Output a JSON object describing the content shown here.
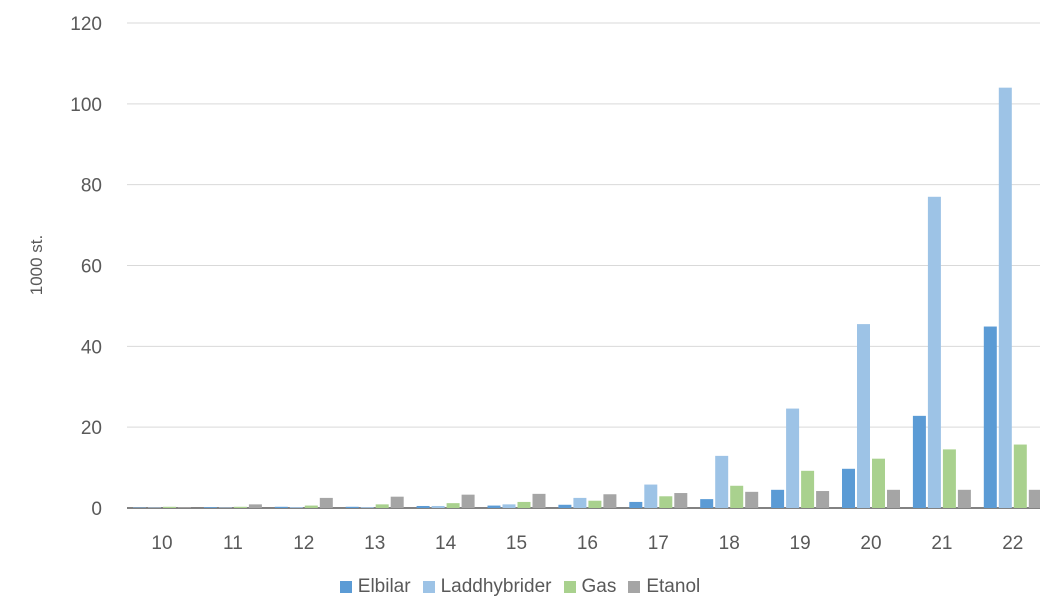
{
  "chart_data": {
    "type": "bar",
    "ylabel": "1000 st.",
    "ylim": [
      0,
      120
    ],
    "yticks": [
      0,
      20,
      40,
      60,
      80,
      100,
      120
    ],
    "grid": true,
    "legend_position": "bottom",
    "categories": [
      "10",
      "11",
      "12",
      "13",
      "14",
      "15",
      "16",
      "17",
      "18",
      "19",
      "20",
      "21",
      "22"
    ],
    "series": [
      {
        "name": "Elbilar",
        "color": "#5b9bd5",
        "values": [
          0.1,
          0.2,
          0.3,
          0.3,
          0.5,
          0.6,
          0.8,
          1.5,
          2.2,
          4.5,
          9.7,
          22.8,
          44.9
        ]
      },
      {
        "name": "Laddhybrider",
        "color": "#9dc3e6",
        "values": [
          0.1,
          0.1,
          0.2,
          0.2,
          0.5,
          0.9,
          2.5,
          5.8,
          12.9,
          24.6,
          45.5,
          77.0,
          104.0
        ]
      },
      {
        "name": "Gas",
        "color": "#a9d18e",
        "values": [
          0.3,
          0.3,
          0.6,
          0.9,
          1.2,
          1.5,
          1.8,
          2.9,
          5.5,
          9.2,
          12.2,
          14.5,
          15.7
        ]
      },
      {
        "name": "Etanol",
        "color": "#a5a5a5",
        "values": [
          0.1,
          0.9,
          2.5,
          2.8,
          3.3,
          3.5,
          3.4,
          3.7,
          4.0,
          4.2,
          4.5,
          4.5,
          4.5
        ]
      }
    ]
  }
}
